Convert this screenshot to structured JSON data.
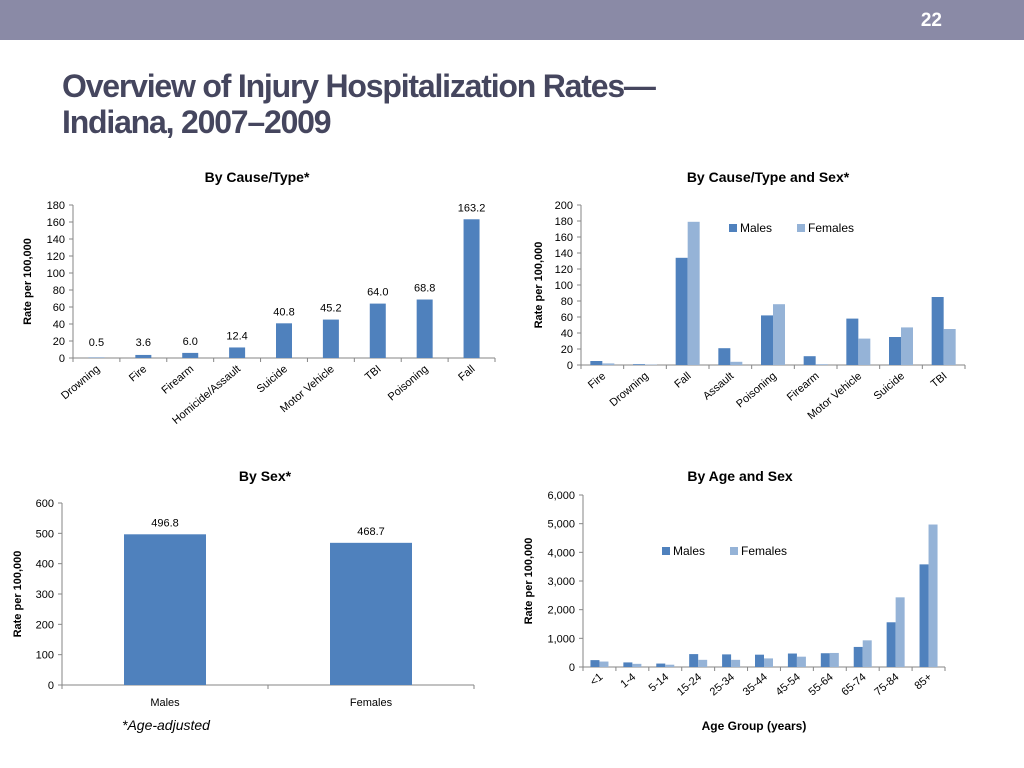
{
  "slide_number": "22",
  "title_line1": "Overview of Injury Hospitalization Rates—",
  "title_line2": "Indiana, 2007–2009",
  "footnote": "*Age-adjusted",
  "colors": {
    "male": "#4f81bd",
    "female": "#95b3d7",
    "bar": "#4f81bd",
    "topbar": "#8a8aa6",
    "title": "#45465e"
  },
  "chart_data": [
    {
      "type": "bar",
      "title": "By Cause/Type*",
      "ylabel": "Rate per 100,000",
      "xlabel": "",
      "ylim": [
        0,
        180
      ],
      "yticks": [
        0,
        20,
        40,
        60,
        80,
        100,
        120,
        140,
        160,
        180
      ],
      "ytick_labels": [
        "0",
        "20",
        "40",
        "60",
        "80",
        "100",
        "120",
        "140",
        "160",
        "180"
      ],
      "categories": [
        "Drowning",
        "Fire",
        "Firearm",
        "Homicide/Assault",
        "Suicide",
        "Motor Vehicle",
        "TBI",
        "Poisoning",
        "Fall"
      ],
      "values": [
        0.5,
        3.6,
        6.0,
        12.4,
        40.8,
        45.2,
        64.0,
        68.8,
        163.2
      ],
      "data_labels": [
        "0.5",
        "3.6",
        "6.0",
        "12.4",
        "40.8",
        "45.2",
        "64.0",
        "68.8",
        "163.2"
      ],
      "legend": "none"
    },
    {
      "type": "bar",
      "title": "By Cause/Type and Sex*",
      "ylabel": "Rate per 100,000",
      "xlabel": "",
      "ylim": [
        0,
        200
      ],
      "yticks": [
        0,
        20,
        40,
        60,
        80,
        100,
        120,
        140,
        160,
        180,
        200
      ],
      "ytick_labels": [
        "0",
        "20",
        "40",
        "60",
        "80",
        "100",
        "120",
        "140",
        "160",
        "180",
        "200"
      ],
      "categories": [
        "Fire",
        "Drowning",
        "Fall",
        "Assault",
        "Poisoning",
        "Firearm",
        "Motor Vehicle",
        "Suicide",
        "TBI"
      ],
      "series": [
        {
          "name": "Males",
          "values": [
            5,
            1,
            134,
            21,
            62,
            11,
            58,
            35,
            85
          ]
        },
        {
          "name": "Females",
          "values": [
            2,
            0.5,
            179,
            4,
            76,
            1,
            33,
            47,
            45
          ]
        }
      ],
      "legend": "top-right"
    },
    {
      "type": "bar",
      "title": "By Sex*",
      "ylabel": "Rate per 100,000",
      "xlabel": "",
      "ylim": [
        0,
        600
      ],
      "yticks": [
        0,
        100,
        200,
        300,
        400,
        500,
        600
      ],
      "ytick_labels": [
        "0",
        "100",
        "200",
        "300",
        "400",
        "500",
        "600"
      ],
      "categories": [
        "Males",
        "Females"
      ],
      "values": [
        496.8,
        468.7
      ],
      "data_labels": [
        "496.8",
        "468.7"
      ],
      "legend": "none"
    },
    {
      "type": "bar",
      "title": "By Age and Sex",
      "ylabel": "Rate per 100,000",
      "xlabel": "Age Group (years)",
      "ylim": [
        0,
        6000
      ],
      "yticks": [
        0,
        1000,
        2000,
        3000,
        4000,
        5000,
        6000
      ],
      "ytick_labels": [
        "0",
        "1,000",
        "2,000",
        "3,000",
        "4,000",
        "5,000",
        "6,000"
      ],
      "categories": [
        "<1",
        "1-4",
        "5-14",
        "15-24",
        "25-34",
        "35-44",
        "45-54",
        "55-64",
        "65-74",
        "75-84",
        "85+"
      ],
      "series": [
        {
          "name": "Males",
          "values": [
            240,
            160,
            120,
            450,
            440,
            430,
            470,
            480,
            700,
            1560,
            3580
          ]
        },
        {
          "name": "Females",
          "values": [
            190,
            110,
            80,
            250,
            250,
            300,
            360,
            490,
            930,
            2430,
            4970
          ]
        }
      ],
      "legend": "top-right"
    }
  ]
}
